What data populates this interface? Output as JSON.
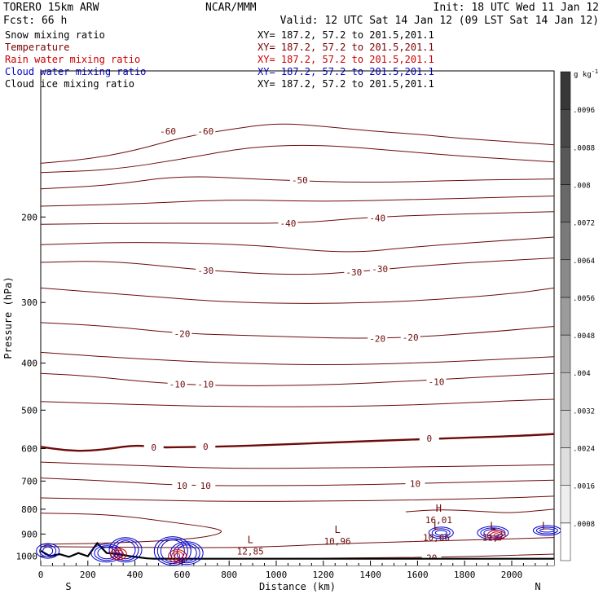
{
  "header": {
    "model": "TORERO  15km ARW",
    "center": "NCAR/MMM",
    "init": "Init: 18 UTC Wed 11 Jan 12",
    "fcst": "Fcst:   66 h",
    "valid": "Valid: 12 UTC Sat 14 Jan 12 (09 LST Sat 14 Jan 12)"
  },
  "legend": [
    {
      "name": "Snow mixing ratio",
      "xy": "XY= 187.2, 57.2 to 201.5,201.1",
      "color": "#000000"
    },
    {
      "name": "Temperature",
      "xy": "XY= 187.2, 57.2 to 201.5,201.1",
      "color": "#7a0000"
    },
    {
      "name": "Rain water mixing ratio",
      "xy": "XY= 187.2, 57.2 to 201.5,201.1",
      "color": "#cc0000"
    },
    {
      "name": "Cloud water mixing ratio",
      "xy": "XY= 187.2, 57.2 to 201.5,201.1",
      "color": "#0000cc"
    },
    {
      "name": "Cloud ice mixing ratio",
      "xy": "XY= 187.2, 57.2 to 201.5,201.1",
      "color": "#000000"
    }
  ],
  "chart_data": {
    "type": "contour",
    "ylabel": "Pressure (hPa)",
    "xlabel": "Distance (km)",
    "x_ticks": [
      0,
      200,
      400,
      600,
      800,
      1000,
      1200,
      1400,
      1600,
      1800,
      2000
    ],
    "y_ticks": [
      200,
      300,
      400,
      500,
      600,
      700,
      800,
      900,
      1000
    ],
    "x_range": [
      0,
      2180
    ],
    "y_range": [
      1045,
      100
    ],
    "y_scale": "log",
    "direction_left": "S",
    "direction_right": "N",
    "colorbar": {
      "units": "g kg",
      "units_exp": "-1",
      "ticks": [
        ".0008",
        ".0016",
        ".0024",
        ".0032",
        ".004",
        ".0048",
        ".0056",
        ".0064",
        ".0072",
        ".008",
        ".0088",
        ".0096"
      ]
    },
    "temperature_isotherms": [
      {
        "label": "-60",
        "points": [
          [
            0,
            155
          ],
          [
            200,
            152
          ],
          [
            400,
            146
          ],
          [
            600,
            137
          ],
          [
            800,
            132
          ],
          [
            1000,
            128
          ],
          [
            1200,
            130
          ],
          [
            1400,
            133
          ],
          [
            1600,
            135
          ],
          [
            1800,
            138
          ],
          [
            2000,
            140
          ],
          [
            2180,
            142
          ]
        ],
        "labels_at": [
          [
            540,
            133
          ],
          [
            700,
            133
          ]
        ]
      },
      {
        "label": "",
        "points": [
          [
            0,
            162
          ],
          [
            300,
            160
          ],
          [
            600,
            152
          ],
          [
            900,
            143
          ],
          [
            1200,
            142
          ],
          [
            1500,
            146
          ],
          [
            1800,
            150
          ],
          [
            2180,
            154
          ]
        ],
        "labels_at": []
      },
      {
        "label": "-50",
        "points": [
          [
            0,
            175
          ],
          [
            300,
            172
          ],
          [
            600,
            164
          ],
          [
            1000,
            168
          ],
          [
            1400,
            170
          ],
          [
            1800,
            168
          ],
          [
            2180,
            167
          ]
        ],
        "labels_at": [
          [
            1100,
            168
          ]
        ]
      },
      {
        "label": "",
        "points": [
          [
            0,
            190
          ],
          [
            400,
            188
          ],
          [
            800,
            184
          ],
          [
            1200,
            186
          ],
          [
            1600,
            184
          ],
          [
            2000,
            182
          ],
          [
            2180,
            181
          ]
        ],
        "labels_at": []
      },
      {
        "label": "-40",
        "points": [
          [
            0,
            207
          ],
          [
            400,
            206
          ],
          [
            800,
            206
          ],
          [
            1100,
            206
          ],
          [
            1400,
            200
          ],
          [
            1800,
            197
          ],
          [
            2180,
            195
          ]
        ],
        "labels_at": [
          [
            1050,
            206
          ],
          [
            1430,
            201
          ]
        ]
      },
      {
        "label": "",
        "points": [
          [
            0,
            228
          ],
          [
            400,
            225
          ],
          [
            900,
            228
          ],
          [
            1300,
            238
          ],
          [
            1600,
            230
          ],
          [
            2000,
            223
          ],
          [
            2180,
            220
          ]
        ],
        "labels_at": []
      },
      {
        "label": "-30",
        "points": [
          [
            0,
            248
          ],
          [
            300,
            246
          ],
          [
            700,
            258
          ],
          [
            1100,
            264
          ],
          [
            1400,
            258
          ],
          [
            1700,
            250
          ],
          [
            2180,
            243
          ]
        ],
        "labels_at": [
          [
            700,
            258
          ],
          [
            1330,
            260
          ],
          [
            1440,
            256
          ]
        ]
      },
      {
        "label": "",
        "points": [
          [
            0,
            280
          ],
          [
            400,
            290
          ],
          [
            800,
            300
          ],
          [
            1200,
            302
          ],
          [
            1600,
            298
          ],
          [
            2000,
            288
          ],
          [
            2180,
            280
          ]
        ],
        "labels_at": []
      },
      {
        "label": "-20",
        "points": [
          [
            0,
            330
          ],
          [
            300,
            336
          ],
          [
            600,
            348
          ],
          [
            1000,
            352
          ],
          [
            1300,
            356
          ],
          [
            1600,
            354
          ],
          [
            2000,
            342
          ],
          [
            2180,
            336
          ]
        ],
        "labels_at": [
          [
            600,
            348
          ],
          [
            1430,
            356
          ],
          [
            1570,
            354
          ]
        ]
      },
      {
        "label": "",
        "points": [
          [
            0,
            380
          ],
          [
            400,
            392
          ],
          [
            800,
            400
          ],
          [
            1200,
            404
          ],
          [
            1600,
            400
          ],
          [
            2000,
            392
          ],
          [
            2180,
            388
          ]
        ],
        "labels_at": []
      },
      {
        "label": "-10",
        "points": [
          [
            0,
            420
          ],
          [
            200,
            425
          ],
          [
            500,
            440
          ],
          [
            800,
            446
          ],
          [
            1200,
            444
          ],
          [
            1600,
            435
          ],
          [
            2000,
            424
          ],
          [
            2180,
            420
          ]
        ],
        "labels_at": [
          [
            580,
            442
          ],
          [
            700,
            442
          ],
          [
            1680,
            437
          ]
        ]
      },
      {
        "label": "",
        "points": [
          [
            0,
            480
          ],
          [
            400,
            487
          ],
          [
            800,
            492
          ],
          [
            1200,
            492
          ],
          [
            1600,
            488
          ],
          [
            2000,
            478
          ],
          [
            2180,
            475
          ]
        ],
        "labels_at": []
      },
      {
        "label": "0",
        "points": [
          [
            0,
            595
          ],
          [
            100,
            605
          ],
          [
            200,
            607
          ],
          [
            300,
            600
          ],
          [
            400,
            590
          ],
          [
            500,
            597
          ],
          [
            600,
            596
          ],
          [
            800,
            594
          ],
          [
            1200,
            584
          ],
          [
            1600,
            574
          ],
          [
            2000,
            566
          ],
          [
            2180,
            560
          ]
        ],
        "labels_at": [
          [
            480,
            597
          ],
          [
            700,
            594
          ],
          [
            1650,
            572
          ]
        ]
      },
      {
        "label": "",
        "points": [
          [
            0,
            640
          ],
          [
            400,
            650
          ],
          [
            800,
            660
          ],
          [
            1200,
            658
          ],
          [
            1600,
            655
          ],
          [
            2000,
            650
          ],
          [
            2180,
            648
          ]
        ],
        "labels_at": []
      },
      {
        "label": "10",
        "points": [
          [
            0,
            690
          ],
          [
            300,
            700
          ],
          [
            600,
            715
          ],
          [
            1000,
            716
          ],
          [
            1400,
            712
          ],
          [
            1800,
            704
          ],
          [
            2180,
            697
          ]
        ],
        "labels_at": [
          [
            600,
            715
          ],
          [
            700,
            716
          ],
          [
            1590,
            708
          ]
        ]
      },
      {
        "label": "",
        "points": [
          [
            0,
            758
          ],
          [
            400,
            765
          ],
          [
            800,
            772
          ],
          [
            1200,
            770
          ],
          [
            1600,
            766
          ],
          [
            2000,
            758
          ],
          [
            2180,
            752
          ]
        ],
        "labels_at": []
      },
      {
        "label": "20",
        "points": [
          [
            450,
            1010
          ],
          [
            900,
            1012
          ],
          [
            1300,
            1008
          ],
          [
            1700,
            1005
          ],
          [
            2180,
            990
          ]
        ],
        "labels_at": [
          [
            1660,
            1008
          ]
        ]
      },
      {
        "label": "",
        "points": [
          [
            0,
            815
          ],
          [
            300,
            820
          ],
          [
            550,
            850
          ],
          [
            780,
            880
          ],
          [
            750,
            905
          ],
          [
            600,
            925
          ],
          [
            300,
            940
          ],
          [
            0,
            945
          ]
        ],
        "labels_at": []
      },
      {
        "label": "",
        "points": [
          [
            0,
            955
          ],
          [
            500,
            960
          ],
          [
            900,
            960
          ],
          [
            1300,
            940
          ],
          [
            1700,
            930
          ],
          [
            2180,
            915
          ]
        ],
        "labels_at": []
      },
      {
        "label": "",
        "points": [
          [
            1550,
            810
          ],
          [
            1700,
            800
          ],
          [
            1900,
            810
          ],
          [
            2000,
            815
          ],
          [
            2180,
            800
          ]
        ],
        "labels_at": []
      }
    ],
    "point_labels": [
      {
        "text": "L",
        "value": "12,85",
        "x": 890,
        "y": 940
      },
      {
        "text": "L",
        "value": "10,96",
        "x": 1260,
        "y": 895
      },
      {
        "text": "H",
        "value": "16,01",
        "x": 1690,
        "y": 810
      },
      {
        "text": "L",
        "value": "10,66",
        "x": 1680,
        "y": 880
      },
      {
        "text": "L",
        "value": "11,7",
        "x": 1920,
        "y": 880
      },
      {
        "text": "L",
        "value": "",
        "x": 2140,
        "y": 880
      }
    ],
    "annotations": [
      "04495",
      "56",
      ".001",
      ".0166",
      ".0012",
      ".0024",
      ".001"
    ],
    "terrain_km_pressure": [
      [
        0,
        975
      ],
      [
        40,
        1000
      ],
      [
        80,
        990
      ],
      [
        120,
        1003
      ],
      [
        160,
        985
      ],
      [
        200,
        1000
      ],
      [
        240,
        940
      ],
      [
        280,
        985
      ],
      [
        330,
        990
      ],
      [
        380,
        1000
      ],
      [
        450,
        1010
      ],
      [
        480,
        1012
      ],
      [
        2180,
        1012
      ]
    ]
  }
}
